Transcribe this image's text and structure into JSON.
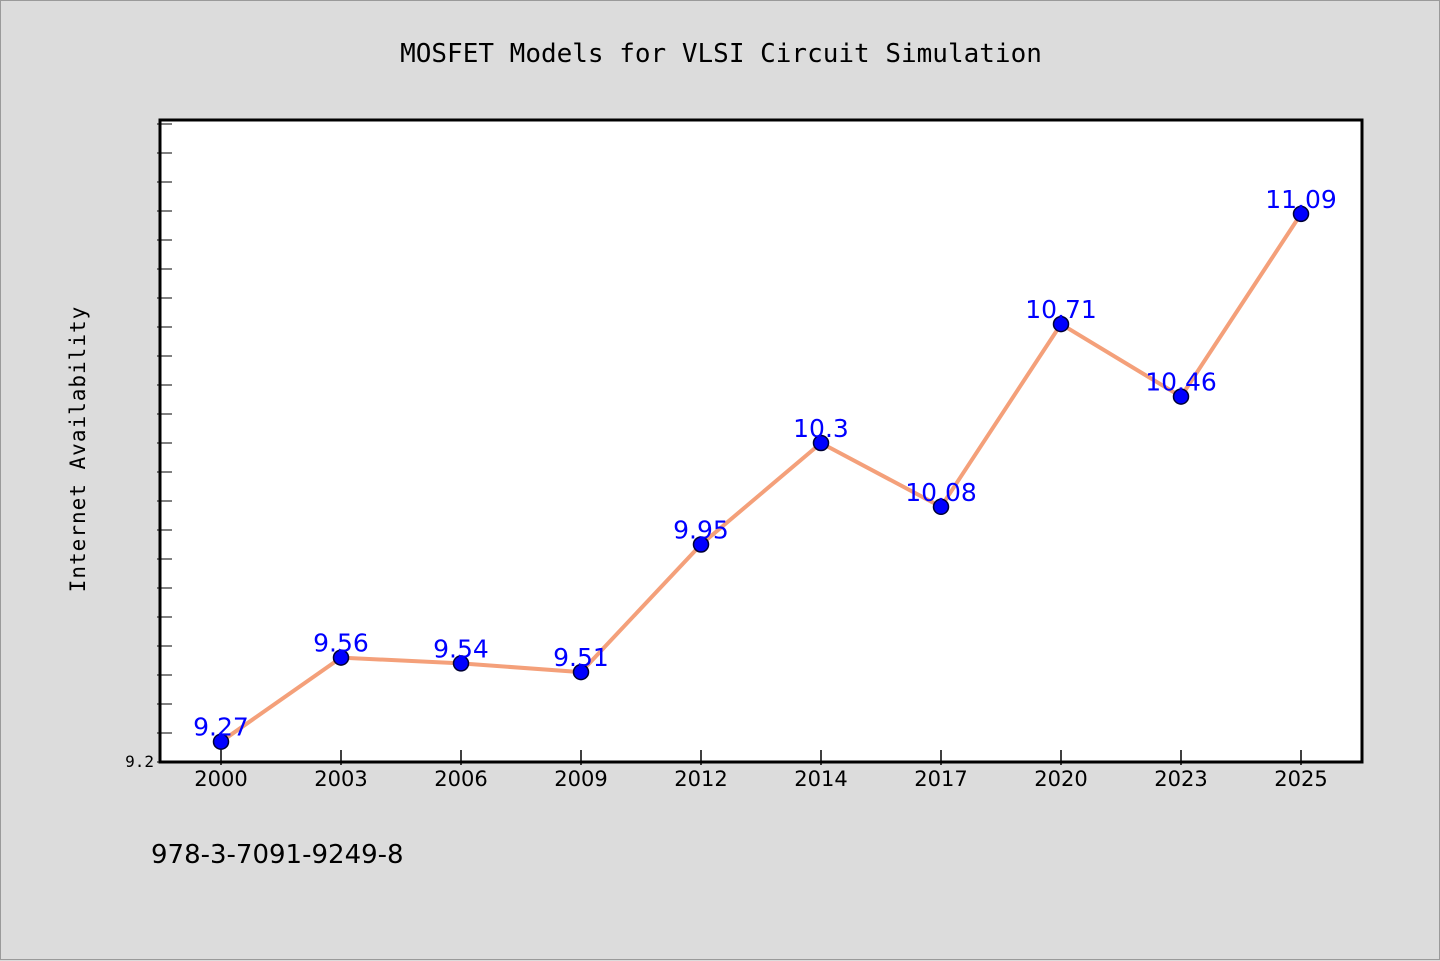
{
  "chart_data": {
    "type": "line",
    "title": "MOSFET Models for VLSI Circuit Simulation",
    "xlabel": "",
    "ylabel": "Internet Availability",
    "categories": [
      "2000",
      "2003",
      "2006",
      "2009",
      "2012",
      "2014",
      "2017",
      "2020",
      "2023",
      "2025"
    ],
    "values": [
      9.27,
      9.56,
      9.54,
      9.51,
      9.95,
      10.3,
      10.08,
      10.71,
      10.46,
      11.09
    ],
    "data_labels": [
      "9.27",
      "9.56",
      "9.54",
      "9.51",
      "9.95",
      "10.3",
      "10.08",
      "10.71",
      "10.46",
      "11.09"
    ],
    "ylim": [
      9.2,
      11.4
    ],
    "yticks": [
      {
        "value": 9.2,
        "label": "9.2"
      }
    ],
    "y_minor_step": 0.1,
    "grid": false,
    "legend": "none",
    "colors": {
      "line": "#f4a07a",
      "marker_fill": "#0000ff",
      "marker_stroke": "#000033",
      "label": "#0000ff",
      "plot_bg": "#ffffff",
      "page_bg": "#dcdcdc"
    }
  },
  "footer": {
    "isbn": "978-3-7091-9249-8"
  }
}
